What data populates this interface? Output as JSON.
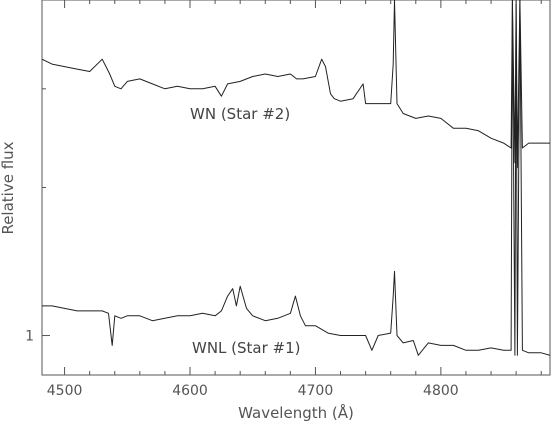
{
  "chart_data": {
    "type": "line",
    "title": "",
    "xlabel": "Wavelength (Å)",
    "ylabel": "Relative flux",
    "xlim": [
      4482,
      4887
    ],
    "ylim": [
      0.92,
      1.68
    ],
    "grid": false,
    "legend": "none",
    "xticks": [
      4500,
      4600,
      4700,
      4800
    ],
    "xtick_labels": [
      "4500",
      "4600",
      "4700",
      "4800"
    ],
    "yticks": [
      1
    ],
    "ytick_labels": [
      "1"
    ],
    "line_color": "#222222",
    "series": [
      {
        "x": [
          4482,
          4490,
          4500,
          4510,
          4520,
          4530,
          4533,
          4536,
          4540,
          4545,
          4550,
          4560,
          4570,
          4580,
          4590,
          4600,
          4610,
          4620,
          4625,
          4630,
          4640,
          4650,
          4660,
          4670,
          4680,
          4685,
          4690,
          4700,
          4705,
          4708,
          4712,
          4715,
          4720,
          4730,
          4738,
          4740,
          4745,
          4750,
          4760,
          4762,
          4763,
          4765,
          4770,
          4780,
          4790,
          4800,
          4810,
          4820,
          4830,
          4840,
          4850,
          4856,
          4857,
          4859,
          4860,
          4861,
          4863,
          4865,
          4870,
          4880,
          4887
        ],
        "y": [
          1.56,
          1.55,
          1.545,
          1.54,
          1.535,
          1.56,
          1.545,
          1.53,
          1.505,
          1.5,
          1.515,
          1.52,
          1.51,
          1.5,
          1.505,
          1.5,
          1.5,
          1.505,
          1.485,
          1.51,
          1.515,
          1.525,
          1.53,
          1.525,
          1.53,
          1.52,
          1.52,
          1.525,
          1.56,
          1.545,
          1.49,
          1.48,
          1.475,
          1.48,
          1.51,
          1.47,
          1.47,
          1.47,
          1.47,
          1.55,
          1.68,
          1.47,
          1.45,
          1.44,
          1.445,
          1.44,
          1.42,
          1.42,
          1.415,
          1.4,
          1.39,
          1.38,
          1.68,
          1.35,
          1.68,
          1.34,
          1.68,
          1.38,
          1.39,
          1.39,
          1.39
        ]
      },
      {
        "x": [
          4482,
          4490,
          4500,
          4510,
          4520,
          4530,
          4535,
          4538,
          4540,
          4545,
          4550,
          4560,
          4570,
          4580,
          4590,
          4600,
          4610,
          4620,
          4625,
          4630,
          4634,
          4637,
          4640,
          4645,
          4650,
          4660,
          4670,
          4680,
          4684,
          4688,
          4692,
          4700,
          4710,
          4720,
          4730,
          4740,
          4745,
          4750,
          4760,
          4762,
          4763,
          4765,
          4770,
          4778,
          4782,
          4790,
          4800,
          4810,
          4820,
          4830,
          4840,
          4850,
          4856,
          4857,
          4859,
          4860,
          4861,
          4863,
          4865,
          4870,
          4880,
          4887
        ],
        "y": [
          1.06,
          1.06,
          1.055,
          1.05,
          1.05,
          1.05,
          1.045,
          0.98,
          1.04,
          1.035,
          1.04,
          1.04,
          1.03,
          1.035,
          1.04,
          1.04,
          1.045,
          1.04,
          1.05,
          1.08,
          1.095,
          1.06,
          1.1,
          1.055,
          1.04,
          1.03,
          1.035,
          1.045,
          1.08,
          1.04,
          1.02,
          1.02,
          1.005,
          1.0,
          1.0,
          1.0,
          0.97,
          1.0,
          1.005,
          1.08,
          1.13,
          1.0,
          0.985,
          0.99,
          0.96,
          0.985,
          0.98,
          0.98,
          0.97,
          0.97,
          0.975,
          0.97,
          0.97,
          1.68,
          0.96,
          1.68,
          0.96,
          1.68,
          0.97,
          0.965,
          0.965,
          0.96
        ]
      }
    ],
    "annotations": [
      "WN (Star #2)",
      "WNL (Star #1)"
    ]
  }
}
